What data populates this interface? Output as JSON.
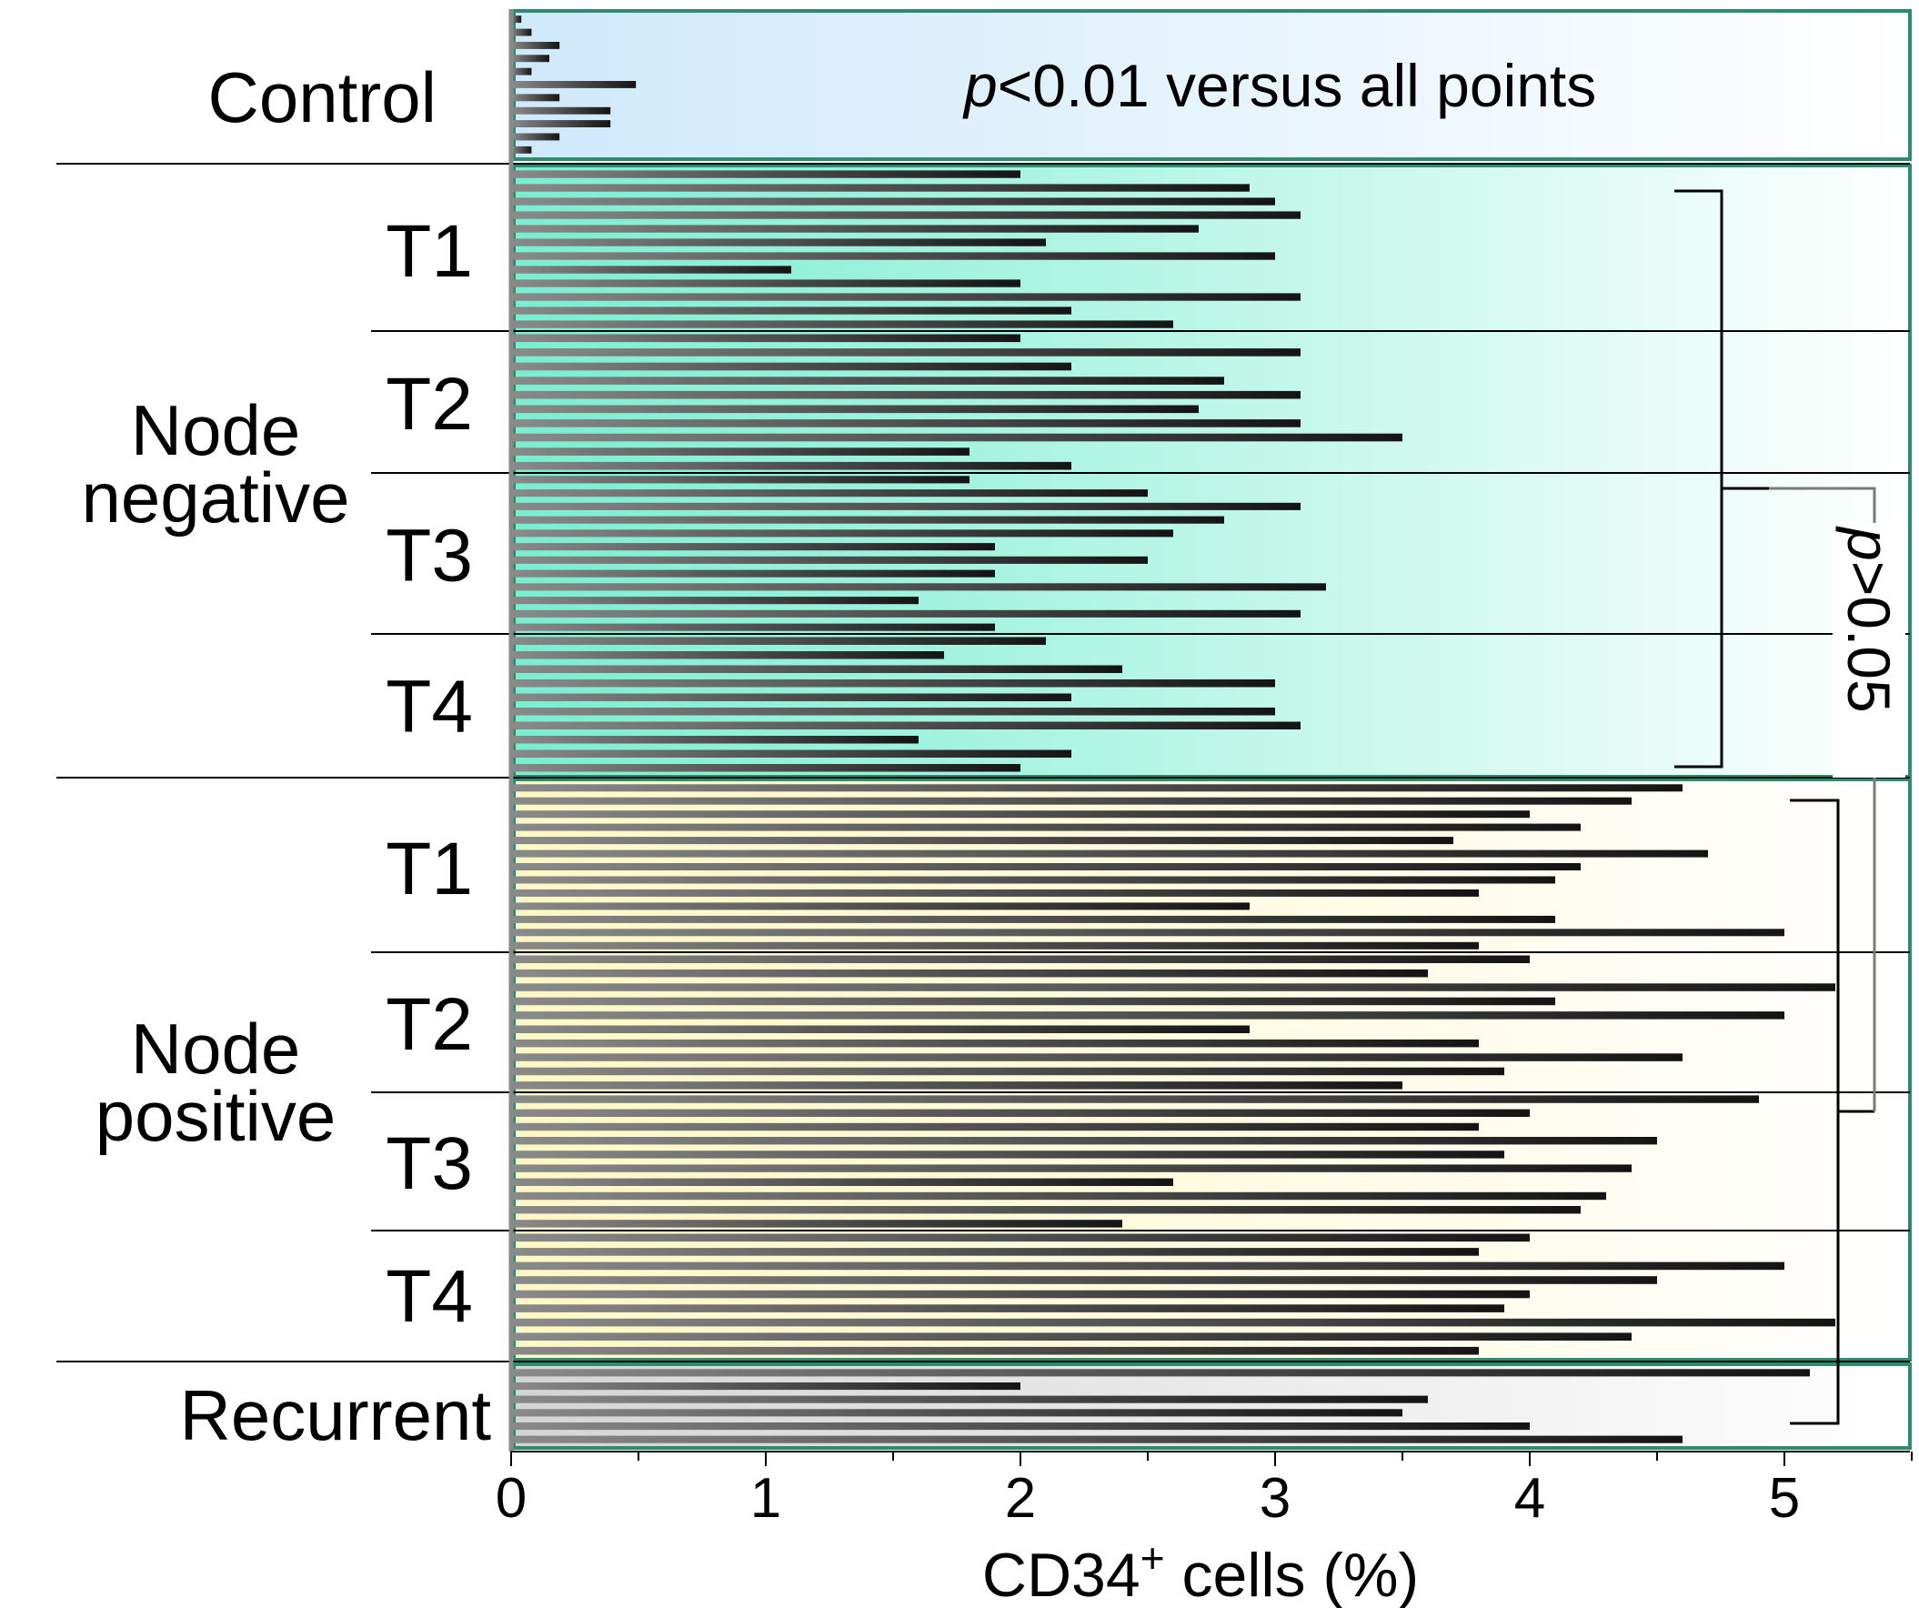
{
  "chart_data": {
    "type": "bar",
    "orientation": "horizontal",
    "xlabel": "CD34",
    "xlabel_superscript": "+",
    "xlabel_suffix": " cells (%)",
    "xlim": [
      0,
      5.5
    ],
    "xticks": [
      "0",
      "1",
      "2",
      "3",
      "4",
      "5"
    ],
    "colors": {
      "bar": "#1a1a1a",
      "control_bg": "#cde8fb",
      "negative_bg": "#7ff0d2",
      "positive_bg": "#fff6c2",
      "recurrent_bg": "#d9d9d9",
      "frame": "#2e8b6e"
    },
    "groups": [
      {
        "name": "Control",
        "annotation_italic": "p",
        "annotation_rest": "<0.01 versus all points",
        "subgroups": [
          {
            "label": "",
            "values": [
              0.04,
              0.08,
              0.19,
              0.15,
              0.08,
              0.49,
              0.19,
              0.39,
              0.39,
              0.19,
              0.08
            ]
          }
        ]
      },
      {
        "name_line1": "Node",
        "name_line2": "negative",
        "subgroups": [
          {
            "label": "T1",
            "values": [
              2.0,
              2.9,
              3.0,
              3.1,
              2.7,
              2.1,
              3.0,
              1.1,
              2.0,
              3.1,
              2.2,
              2.6
            ]
          },
          {
            "label": "T2",
            "values": [
              2.0,
              3.1,
              2.2,
              2.8,
              3.1,
              2.7,
              3.1,
              3.5,
              1.8,
              2.2
            ]
          },
          {
            "label": "T3",
            "values": [
              1.8,
              2.5,
              3.1,
              2.8,
              2.6,
              1.9,
              2.5,
              1.9,
              3.2,
              1.6,
              3.1,
              1.9
            ]
          },
          {
            "label": "T4",
            "values": [
              2.1,
              1.7,
              2.4,
              3.0,
              2.2,
              3.0,
              3.1,
              1.6,
              2.2,
              2.0
            ]
          }
        ]
      },
      {
        "name_line1": "Node",
        "name_line2": "positive",
        "subgroups": [
          {
            "label": "T1",
            "values": [
              4.6,
              4.4,
              4.0,
              4.2,
              3.7,
              4.7,
              4.2,
              4.1,
              3.8,
              2.9,
              4.1,
              5.0,
              3.8
            ]
          },
          {
            "label": "T2",
            "values": [
              4.0,
              3.6,
              5.2,
              4.1,
              5.0,
              2.9,
              3.8,
              4.6,
              3.9,
              3.5
            ]
          },
          {
            "label": "T3",
            "values": [
              4.9,
              4.0,
              3.8,
              4.5,
              3.9,
              4.4,
              2.6,
              4.3,
              4.2,
              2.4
            ]
          },
          {
            "label": "T4",
            "values": [
              4.0,
              3.8,
              5.0,
              4.5,
              4.0,
              3.9,
              5.2,
              4.4,
              3.8
            ]
          }
        ]
      },
      {
        "name": "Recurrent",
        "subgroups": [
          {
            "label": "",
            "values": [
              5.1,
              2.0,
              3.6,
              3.5,
              4.0,
              4.6
            ]
          }
        ]
      }
    ],
    "bracket_annotation_italic": "p",
    "bracket_annotation_rest": ">0.05"
  }
}
